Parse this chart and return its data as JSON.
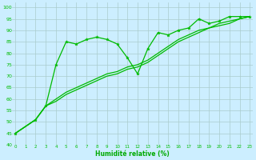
{
  "background_color": "#cceeff",
  "grid_color": "#aacccc",
  "line_color": "#00bb00",
  "marker_color": "#00bb00",
  "xlabel": "Humidité relative (%)",
  "xlabel_color": "#00aa00",
  "ylim": [
    40,
    102
  ],
  "xlim": [
    -0.3,
    23.3
  ],
  "yticks": [
    40,
    45,
    50,
    55,
    60,
    65,
    70,
    75,
    80,
    85,
    90,
    95,
    100
  ],
  "xticks": [
    0,
    1,
    2,
    3,
    4,
    5,
    6,
    7,
    8,
    9,
    10,
    11,
    12,
    13,
    14,
    15,
    16,
    17,
    18,
    19,
    20,
    21,
    22,
    23
  ],
  "series_marked": {
    "x": [
      0,
      2,
      3,
      4,
      5,
      6,
      7,
      8,
      9,
      10,
      11,
      12,
      13,
      14,
      15,
      16,
      17,
      18,
      19,
      20,
      21,
      22,
      23
    ],
    "y": [
      45,
      51,
      57,
      75,
      85,
      84,
      86,
      87,
      86,
      84,
      78,
      71,
      82,
      89,
      88,
      90,
      91,
      95,
      93,
      94,
      96,
      96,
      96
    ]
  },
  "series_smooth1": {
    "x": [
      0,
      2,
      3,
      4,
      5,
      6,
      7,
      8,
      9,
      10,
      11,
      12,
      13,
      14,
      15,
      16,
      17,
      18,
      19,
      20,
      21,
      22,
      23
    ],
    "y": [
      45,
      51,
      57,
      59,
      62,
      64,
      66,
      68,
      70,
      71,
      73,
      74,
      76,
      79,
      82,
      85,
      87,
      89,
      91,
      92,
      93,
      95,
      96
    ]
  },
  "series_smooth2": {
    "x": [
      0,
      2,
      3,
      4,
      5,
      6,
      7,
      8,
      9,
      10,
      11,
      12,
      13,
      14,
      15,
      16,
      17,
      18,
      19,
      20,
      21,
      22,
      23
    ],
    "y": [
      45,
      51,
      57,
      60,
      63,
      65,
      67,
      69,
      71,
      72,
      74,
      75,
      77,
      80,
      83,
      86,
      88,
      90,
      91,
      93,
      94,
      95,
      96
    ]
  }
}
